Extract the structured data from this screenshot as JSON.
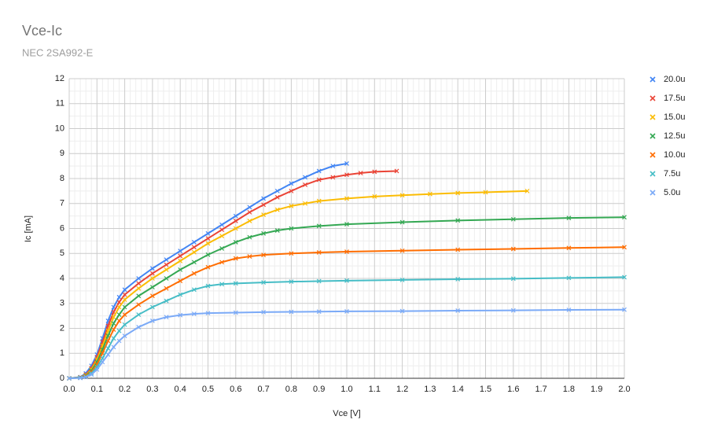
{
  "chart_data": {
    "type": "line",
    "title": "Vce-Ic",
    "subtitle": "NEC 2SA992-E",
    "x_label": "Vce [V]",
    "y_label": "Ic [mA]",
    "xlim": [
      0,
      2
    ],
    "ylim": [
      0,
      12
    ],
    "xticks": [
      {
        "value": 0,
        "label": "0.0"
      },
      0.1,
      0.2,
      0.3,
      0.4,
      0.5,
      0.6,
      0.7,
      0.8,
      0.9,
      {
        "value": 1,
        "label": "1.0"
      },
      1.1,
      1.2,
      1.3,
      1.4,
      1.5,
      1.6,
      1.7,
      1.8,
      1.9,
      {
        "value": 2,
        "label": "2.0"
      }
    ],
    "yticks": [
      0,
      1,
      2,
      3,
      4,
      5,
      6,
      7,
      8,
      9,
      10,
      11,
      12
    ],
    "grid": true,
    "minor_grid": {
      "x": 5,
      "y": 2
    },
    "legend": "right",
    "series": [
      {
        "name": "20.0u",
        "color": "#4285f4",
        "x": [
          0,
          0.04,
          0.06,
          0.08,
          0.1,
          0.12,
          0.14,
          0.16,
          0.18,
          0.2,
          0.25,
          0.3,
          0.35,
          0.4,
          0.45,
          0.5,
          0.55,
          0.6,
          0.65,
          0.7,
          0.75,
          0.8,
          0.85,
          0.9,
          0.95,
          1.0
        ],
        "values": [
          0,
          0.05,
          0.2,
          0.5,
          0.95,
          1.6,
          2.3,
          2.85,
          3.25,
          3.55,
          4.0,
          4.4,
          4.75,
          5.1,
          5.45,
          5.8,
          6.15,
          6.5,
          6.85,
          7.2,
          7.5,
          7.8,
          8.05,
          8.3,
          8.5,
          8.6
        ]
      },
      {
        "name": "17.5u",
        "color": "#ea4335",
        "x": [
          0,
          0.04,
          0.06,
          0.08,
          0.1,
          0.12,
          0.14,
          0.16,
          0.18,
          0.2,
          0.25,
          0.3,
          0.35,
          0.4,
          0.45,
          0.5,
          0.55,
          0.6,
          0.65,
          0.7,
          0.75,
          0.8,
          0.85,
          0.9,
          0.95,
          1.0,
          1.05,
          1.1,
          1.18
        ],
        "values": [
          0,
          0.04,
          0.15,
          0.4,
          0.85,
          1.45,
          2.1,
          2.65,
          3.05,
          3.35,
          3.8,
          4.2,
          4.55,
          4.9,
          5.25,
          5.6,
          5.95,
          6.3,
          6.65,
          6.95,
          7.25,
          7.5,
          7.75,
          7.95,
          8.05,
          8.15,
          8.22,
          8.27,
          8.3
        ]
      },
      {
        "name": "15.0u",
        "color": "#fbbc04",
        "x": [
          0,
          0.04,
          0.06,
          0.08,
          0.1,
          0.12,
          0.14,
          0.16,
          0.18,
          0.2,
          0.25,
          0.3,
          0.35,
          0.4,
          0.45,
          0.5,
          0.55,
          0.6,
          0.65,
          0.7,
          0.75,
          0.8,
          0.85,
          0.9,
          1.0,
          1.1,
          1.2,
          1.3,
          1.4,
          1.5,
          1.65
        ],
        "values": [
          0,
          0.03,
          0.12,
          0.35,
          0.75,
          1.3,
          1.9,
          2.45,
          2.85,
          3.15,
          3.6,
          4.0,
          4.35,
          4.7,
          5.05,
          5.4,
          5.7,
          6.0,
          6.3,
          6.55,
          6.75,
          6.9,
          7.0,
          7.1,
          7.2,
          7.28,
          7.33,
          7.38,
          7.42,
          7.45,
          7.5
        ]
      },
      {
        "name": "12.5u",
        "color": "#34a853",
        "x": [
          0,
          0.04,
          0.06,
          0.08,
          0.1,
          0.12,
          0.14,
          0.16,
          0.18,
          0.2,
          0.25,
          0.3,
          0.35,
          0.4,
          0.45,
          0.5,
          0.55,
          0.6,
          0.65,
          0.7,
          0.75,
          0.8,
          0.9,
          1.0,
          1.2,
          1.4,
          1.6,
          1.8,
          2.0
        ],
        "values": [
          0,
          0.03,
          0.1,
          0.3,
          0.65,
          1.15,
          1.7,
          2.2,
          2.55,
          2.85,
          3.3,
          3.65,
          4.0,
          4.35,
          4.65,
          4.95,
          5.2,
          5.45,
          5.65,
          5.8,
          5.92,
          6.0,
          6.1,
          6.17,
          6.25,
          6.32,
          6.37,
          6.42,
          6.45
        ]
      },
      {
        "name": "10.0u",
        "color": "#ff6d01",
        "x": [
          0,
          0.04,
          0.06,
          0.08,
          0.1,
          0.12,
          0.14,
          0.16,
          0.18,
          0.2,
          0.25,
          0.3,
          0.35,
          0.4,
          0.45,
          0.5,
          0.55,
          0.6,
          0.65,
          0.7,
          0.8,
          0.9,
          1.0,
          1.2,
          1.4,
          1.6,
          1.8,
          2.0
        ],
        "values": [
          0,
          0.02,
          0.08,
          0.25,
          0.55,
          1.0,
          1.5,
          1.95,
          2.3,
          2.55,
          2.95,
          3.3,
          3.6,
          3.9,
          4.2,
          4.45,
          4.65,
          4.8,
          4.88,
          4.94,
          5.0,
          5.04,
          5.07,
          5.11,
          5.15,
          5.18,
          5.22,
          5.25
        ]
      },
      {
        "name": "7.5u",
        "color": "#46bdc6",
        "x": [
          0,
          0.04,
          0.06,
          0.08,
          0.1,
          0.12,
          0.14,
          0.16,
          0.18,
          0.2,
          0.25,
          0.3,
          0.35,
          0.4,
          0.45,
          0.5,
          0.55,
          0.6,
          0.7,
          0.8,
          0.9,
          1.0,
          1.2,
          1.4,
          1.6,
          1.8,
          2.0
        ],
        "values": [
          0,
          0.02,
          0.06,
          0.2,
          0.45,
          0.8,
          1.2,
          1.6,
          1.9,
          2.15,
          2.55,
          2.85,
          3.1,
          3.35,
          3.55,
          3.7,
          3.77,
          3.8,
          3.84,
          3.87,
          3.89,
          3.91,
          3.94,
          3.97,
          3.99,
          4.02,
          4.05
        ]
      },
      {
        "name": "5.0u",
        "color": "#7baaf7",
        "x": [
          0,
          0.04,
          0.06,
          0.08,
          0.1,
          0.12,
          0.14,
          0.16,
          0.18,
          0.2,
          0.25,
          0.3,
          0.35,
          0.4,
          0.45,
          0.5,
          0.6,
          0.7,
          0.8,
          0.9,
          1.0,
          1.2,
          1.4,
          1.6,
          1.8,
          2.0
        ],
        "values": [
          0,
          0.01,
          0.05,
          0.15,
          0.35,
          0.65,
          0.95,
          1.25,
          1.5,
          1.7,
          2.05,
          2.3,
          2.45,
          2.53,
          2.58,
          2.61,
          2.63,
          2.65,
          2.66,
          2.67,
          2.68,
          2.69,
          2.71,
          2.72,
          2.74,
          2.75
        ]
      }
    ]
  }
}
